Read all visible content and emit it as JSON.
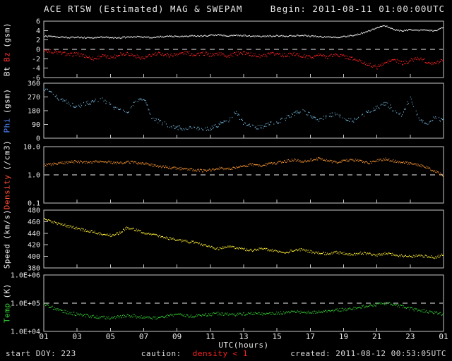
{
  "header": {
    "title": "ACE RTSW (Estimated) MAG & SWEPAM",
    "begin": "Begin: 2011-08-11 01:00:00UTC"
  },
  "footer": {
    "start_doy": "start DOY: 223",
    "caution_label": "caution:",
    "caution_value": "density < 1",
    "created": "created: 2011-08-12 00:53:05UTC"
  },
  "xaxis": {
    "label": "UTC(hours)",
    "tick_labels": [
      "01",
      "03",
      "05",
      "07",
      "09",
      "11",
      "13",
      "15",
      "17",
      "19",
      "21",
      "23",
      "01"
    ]
  },
  "colors": {
    "background": "#000000",
    "frame": "#c8c8c8",
    "text": "#e8e8e8",
    "bt": "#f2f2f2",
    "bz": "#ff2222",
    "phi": "#79c1e8",
    "density": "#ff9933",
    "speed": "#ffee33",
    "temp": "#33cc33",
    "caution": "#ff2222"
  },
  "chart_data": {
    "type": "scatter",
    "title": "ACE RTSW (Estimated) MAG & SWEPAM",
    "background": "#000000",
    "grid": false,
    "legend": "none",
    "x": {
      "label": "UTC(hours)",
      "units": "hours UTC",
      "start": 1,
      "step": 0.5,
      "count": 49,
      "end": 25
    },
    "panels": [
      {
        "id": "mag",
        "ylabel_parts": [
          {
            "text": "Bt",
            "color": "#f2f2f2"
          },
          {
            "text": "Bz",
            "color": "#ff3333"
          },
          {
            "text": "(gsm)",
            "color": "#f2f2f2"
          }
        ],
        "scale": "linear",
        "ylim": [
          -6,
          6
        ],
        "yticks": [
          {
            "v": 6,
            "label": "6"
          },
          {
            "v": 4,
            "label": "4"
          },
          {
            "v": 2,
            "label": "2"
          },
          {
            "v": 0,
            "label": "0"
          },
          {
            "v": -2,
            "label": "-2"
          },
          {
            "v": -4,
            "label": "-4"
          },
          {
            "v": -6,
            "label": "-6"
          }
        ],
        "dashed_at": 0,
        "series": [
          {
            "name": "Bt",
            "color": "#f2f2f2",
            "values": [
              2.8,
              2.7,
              2.6,
              2.5,
              2.6,
              2.5,
              2.4,
              2.6,
              2.5,
              2.4,
              2.6,
              2.7,
              2.6,
              2.5,
              2.7,
              2.8,
              2.7,
              2.8,
              2.9,
              2.8,
              3.0,
              3.1,
              2.9,
              3.0,
              2.9,
              2.8,
              2.7,
              2.8,
              2.9,
              2.8,
              2.9,
              3.0,
              2.8,
              2.7,
              2.6,
              2.5,
              2.7,
              2.9,
              3.3,
              3.9,
              4.6,
              5.0,
              4.2,
              3.9,
              4.2,
              4.0,
              4.1,
              3.9,
              4.8
            ]
          },
          {
            "name": "Bz",
            "color": "#ff2222",
            "values": [
              -0.3,
              -0.5,
              -0.8,
              -1.2,
              -0.9,
              -1.5,
              -2.0,
              -1.4,
              -1.8,
              -1.2,
              -0.8,
              -1.5,
              -1.9,
              -1.2,
              -0.9,
              -1.3,
              -1.0,
              -0.7,
              -1.1,
              -0.8,
              -1.2,
              -0.9,
              -1.4,
              -1.0,
              -0.8,
              -1.2,
              -1.5,
              -1.1,
              -0.9,
              -1.3,
              -1.0,
              -1.4,
              -1.8,
              -1.2,
              -1.6,
              -1.1,
              -1.5,
              -2.0,
              -2.6,
              -3.2,
              -3.8,
              -2.9,
              -2.2,
              -3.0,
              -2.4,
              -1.8,
              -2.6,
              -3.1,
              -2.0
            ]
          }
        ]
      },
      {
        "id": "phi",
        "ylabel_parts": [
          {
            "text": "Phi",
            "color": "#4f86ff"
          },
          {
            "text": "(gsm)",
            "color": "#f2f2f2"
          }
        ],
        "scale": "linear",
        "ylim": [
          0,
          360
        ],
        "yticks": [
          {
            "v": 360,
            "label": "360"
          },
          {
            "v": 270,
            "label": "270"
          },
          {
            "v": 180,
            "label": "180"
          },
          {
            "v": 90,
            "label": "90"
          },
          {
            "v": 0,
            "label": "0"
          }
        ],
        "series": [
          {
            "name": "Phi",
            "color": "#79c1e8",
            "values": [
              320,
              295,
              250,
              230,
              205,
              225,
              245,
              260,
              215,
              185,
              165,
              240,
              255,
              130,
              105,
              85,
              70,
              60,
              75,
              55,
              65,
              90,
              110,
              170,
              95,
              80,
              70,
              90,
              105,
              130,
              160,
              185,
              150,
              120,
              140,
              165,
              130,
              110,
              145,
              175,
              200,
              230,
              185,
              150,
              265,
              120,
              95,
              140,
              110
            ]
          }
        ]
      },
      {
        "id": "density",
        "ylabel_parts": [
          {
            "text": "Density",
            "color": "#ff4d33"
          },
          {
            "text": "(/cm3)",
            "color": "#f2f2f2"
          }
        ],
        "scale": "log",
        "ylim": [
          0.1,
          10
        ],
        "yticks": [
          {
            "v": 10,
            "label": "10.0"
          },
          {
            "v": 1,
            "label": "1.0"
          },
          {
            "v": 0.1,
            "label": "0.1"
          }
        ],
        "dashed_at": 1,
        "series": [
          {
            "name": "Density",
            "color": "#ff9933",
            "values": [
              2.2,
              2.4,
              2.6,
              2.8,
              3.0,
              2.7,
              2.9,
              3.1,
              2.8,
              2.6,
              2.9,
              2.7,
              2.5,
              2.2,
              2.0,
              1.8,
              1.7,
              1.6,
              1.5,
              1.4,
              1.5,
              1.7,
              1.6,
              1.8,
              2.0,
              2.3,
              2.1,
              2.4,
              2.7,
              3.0,
              3.4,
              2.9,
              3.3,
              3.8,
              3.2,
              2.8,
              3.1,
              3.5,
              3.0,
              2.7,
              3.2,
              3.6,
              3.1,
              2.8,
              2.5,
              2.2,
              1.8,
              1.3,
              0.9
            ]
          }
        ]
      },
      {
        "id": "speed",
        "ylabel_parts": [
          {
            "text": "Speed",
            "color": "#f2f2f2"
          },
          {
            "text": "(km/s)",
            "color": "#f2f2f2"
          }
        ],
        "scale": "linear",
        "ylim": [
          380,
          480
        ],
        "yticks": [
          {
            "v": 480,
            "label": "480"
          },
          {
            "v": 460,
            "label": "460"
          },
          {
            "v": 440,
            "label": "440"
          },
          {
            "v": 420,
            "label": "420"
          },
          {
            "v": 400,
            "label": "400"
          },
          {
            "v": 380,
            "label": "380"
          }
        ],
        "series": [
          {
            "name": "Speed",
            "color": "#ffee33",
            "values": [
              465,
              460,
              455,
              452,
              448,
              445,
              442,
              438,
              436,
              440,
              450,
              446,
              441,
              438,
              434,
              431,
              428,
              426,
              424,
              420,
              416,
              413,
              418,
              415,
              412,
              410,
              413,
              411,
              409,
              407,
              410,
              412,
              408,
              406,
              404,
              407,
              405,
              403,
              406,
              404,
              402,
              405,
              403,
              401,
              399,
              402,
              400,
              398,
              404
            ]
          }
        ]
      },
      {
        "id": "temp",
        "ylabel_parts": [
          {
            "text": "Temp",
            "color": "#33cc33"
          },
          {
            "text": "(K)",
            "color": "#f2f2f2"
          }
        ],
        "scale": "log",
        "ylim": [
          10000,
          1000000
        ],
        "yticks": [
          {
            "v": 1000000,
            "label": "1.0E+06"
          },
          {
            "v": 100000,
            "label": "1.0E+05"
          },
          {
            "v": 10000,
            "label": "1.0E+04"
          }
        ],
        "dashed_at": 100000,
        "series": [
          {
            "name": "Temp",
            "color": "#33cc33",
            "values": [
              90000,
              70000,
              55000,
              45000,
              40000,
              36000,
              33000,
              31000,
              30000,
              33000,
              36000,
              34000,
              31000,
              30000,
              32000,
              35000,
              38000,
              36000,
              34000,
              37000,
              40000,
              43000,
              41000,
              39000,
              42000,
              45000,
              43000,
              41000,
              44000,
              47000,
              50000,
              48000,
              46000,
              49000,
              52000,
              56000,
              60000,
              65000,
              72000,
              80000,
              90000,
              100000,
              88000,
              75000,
              64000,
              56000,
              50000,
              45000,
              40000
            ]
          }
        ]
      }
    ]
  }
}
